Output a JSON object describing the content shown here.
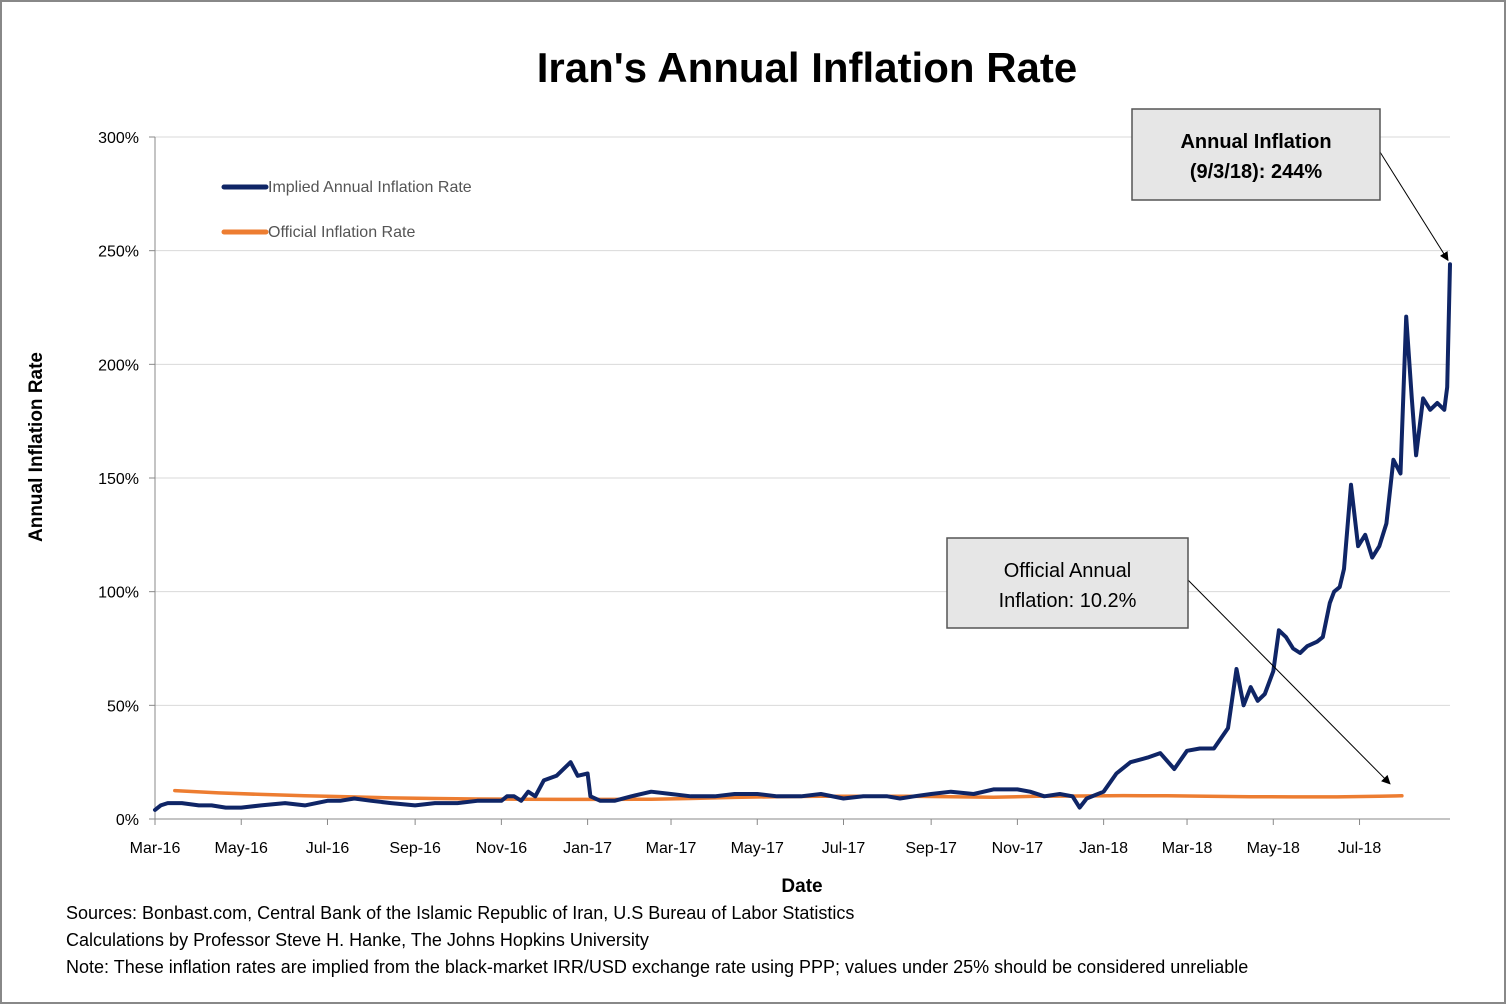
{
  "chart_data": {
    "type": "line",
    "title": "Iran's Annual Inflation Rate",
    "xlabel": "Date",
    "ylabel": "Annual Inflation Rate",
    "ylim": [
      0,
      300
    ],
    "yticks": [
      "0%",
      "50%",
      "100%",
      "150%",
      "200%",
      "250%",
      "300%"
    ],
    "xticks": [
      "Mar-16",
      "May-16",
      "Jul-16",
      "Sep-16",
      "Nov-16",
      "Jan-17",
      "Mar-17",
      "May-17",
      "Jul-17",
      "Sep-17",
      "Nov-17",
      "Jan-18",
      "Mar-18",
      "May-18",
      "Jul-18"
    ],
    "grid": "horizontal",
    "legend_position": "top-left",
    "series": [
      {
        "name": "Implied Annual Inflation Rate",
        "color": "#0f2566",
        "x": [
          "2016-03-01",
          "2016-03-05",
          "2016-03-10",
          "2016-03-20",
          "2016-04-01",
          "2016-04-10",
          "2016-04-20",
          "2016-05-01",
          "2016-05-15",
          "2016-06-01",
          "2016-06-15",
          "2016-07-01",
          "2016-07-10",
          "2016-07-20",
          "2016-08-01",
          "2016-08-15",
          "2016-09-01",
          "2016-09-15",
          "2016-10-01",
          "2016-10-15",
          "2016-11-01",
          "2016-11-05",
          "2016-11-10",
          "2016-11-15",
          "2016-11-20",
          "2016-11-25",
          "2016-12-01",
          "2016-12-10",
          "2016-12-20",
          "2016-12-25",
          "2017-01-01",
          "2017-01-03",
          "2017-01-10",
          "2017-01-20",
          "2017-02-01",
          "2017-02-15",
          "2017-03-01",
          "2017-03-15",
          "2017-04-01",
          "2017-04-15",
          "2017-05-01",
          "2017-05-15",
          "2017-06-01",
          "2017-06-15",
          "2017-07-01",
          "2017-07-15",
          "2017-08-01",
          "2017-08-10",
          "2017-08-20",
          "2017-09-01",
          "2017-09-15",
          "2017-10-01",
          "2017-10-15",
          "2017-11-01",
          "2017-11-10",
          "2017-11-20",
          "2017-12-01",
          "2017-12-10",
          "2017-12-15",
          "2017-12-20",
          "2018-01-01",
          "2018-01-10",
          "2018-01-20",
          "2018-02-01",
          "2018-02-10",
          "2018-02-20",
          "2018-03-01",
          "2018-03-10",
          "2018-03-20",
          "2018-03-30",
          "2018-04-05",
          "2018-04-10",
          "2018-04-15",
          "2018-04-20",
          "2018-04-25",
          "2018-05-01",
          "2018-05-05",
          "2018-05-10",
          "2018-05-15",
          "2018-05-20",
          "2018-05-25",
          "2018-06-01",
          "2018-06-05",
          "2018-06-10",
          "2018-06-13",
          "2018-06-17",
          "2018-06-20",
          "2018-06-25",
          "2018-06-30",
          "2018-07-05",
          "2018-07-10",
          "2018-07-15",
          "2018-07-20",
          "2018-07-25",
          "2018-07-30",
          "2018-08-03",
          "2018-08-07",
          "2018-08-10",
          "2018-08-15",
          "2018-08-20",
          "2018-08-25",
          "2018-08-30",
          "2018-09-01",
          "2018-09-03"
        ],
        "values": [
          4,
          6,
          7,
          7,
          6,
          6,
          5,
          5,
          6,
          7,
          6,
          8,
          8,
          9,
          8,
          7,
          6,
          7,
          7,
          8,
          8,
          10,
          10,
          8,
          12,
          10,
          17,
          19,
          25,
          19,
          20,
          10,
          8,
          8,
          10,
          12,
          11,
          10,
          10,
          11,
          11,
          10,
          10,
          11,
          9,
          10,
          10,
          9,
          10,
          11,
          12,
          11,
          13,
          13,
          12,
          10,
          11,
          10,
          5,
          9,
          12,
          20,
          25,
          27,
          29,
          22,
          30,
          31,
          31,
          40,
          66,
          50,
          58,
          52,
          55,
          65,
          83,
          80,
          75,
          73,
          76,
          78,
          80,
          95,
          100,
          102,
          110,
          147,
          120,
          125,
          115,
          120,
          130,
          158,
          152,
          221,
          185,
          160,
          185,
          180,
          183,
          180,
          190,
          244
        ]
      },
      {
        "name": "Official Inflation Rate",
        "color": "#ed7d31",
        "x": [
          "2016-03-15",
          "2016-04-15",
          "2016-05-15",
          "2016-06-15",
          "2016-07-15",
          "2016-08-15",
          "2016-09-15",
          "2016-10-15",
          "2016-11-15",
          "2016-12-15",
          "2017-01-15",
          "2017-02-15",
          "2017-03-15",
          "2017-04-15",
          "2017-05-15",
          "2017-06-15",
          "2017-07-15",
          "2017-08-15",
          "2017-09-15",
          "2017-10-15",
          "2017-11-15",
          "2017-12-15",
          "2018-01-15",
          "2018-02-15",
          "2018-03-15",
          "2018-04-15",
          "2018-05-15",
          "2018-06-15",
          "2018-07-15",
          "2018-07-31"
        ],
        "values": [
          12.5,
          11.5,
          10.8,
          10.2,
          9.8,
          9.3,
          9.0,
          8.8,
          8.7,
          8.6,
          8.6,
          8.7,
          9.0,
          9.5,
          9.8,
          10.0,
          10.0,
          10.0,
          9.8,
          9.6,
          10.0,
          10.1,
          10.3,
          10.2,
          10.0,
          9.8,
          9.7,
          9.7,
          10.0,
          10.2
        ]
      }
    ],
    "annotations": [
      {
        "line1": "Annual Inflation",
        "line2": "(9/3/18): 244%",
        "bold": true
      },
      {
        "line1": "Official Annual",
        "line2": "Inflation: 10.2%",
        "bold": false
      }
    ]
  },
  "footer": {
    "sources": "Sources: Bonbast.com, Central Bank of the Islamic Republic of Iran, U.S Bureau of Labor Statistics",
    "calculations": "Calculations by Professor Steve H. Hanke, The Johns Hopkins University",
    "note": "Note: These inflation rates are implied from the black-market IRR/USD exchange rate using PPP; values under 25% should be considered unreliable"
  }
}
